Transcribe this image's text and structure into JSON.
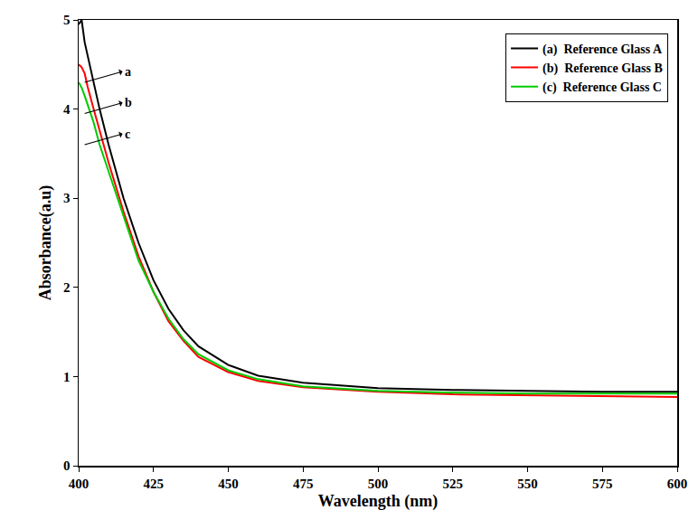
{
  "chart_data": {
    "type": "line",
    "x_label": "Wavelength (nm)",
    "y_label": "Absorbance(a.u)",
    "x": [
      400,
      401,
      402,
      403,
      405,
      407,
      410,
      415,
      420,
      425,
      430,
      435,
      440,
      450,
      460,
      475,
      500,
      525,
      550,
      575,
      600
    ],
    "series": [
      {
        "name": "(a)  Reference Glass A",
        "color": "#000000",
        "values": [
          4.95,
          5.0,
          4.75,
          4.6,
          4.3,
          4.0,
          3.6,
          3.0,
          2.5,
          2.08,
          1.76,
          1.52,
          1.34,
          1.13,
          1.01,
          0.93,
          0.87,
          0.85,
          0.84,
          0.83,
          0.83
        ]
      },
      {
        "name": "(b)  Reference Glass B",
        "color": "#ff0000",
        "values": [
          4.5,
          4.47,
          4.4,
          4.25,
          4.0,
          3.75,
          3.4,
          2.85,
          2.35,
          1.95,
          1.62,
          1.4,
          1.22,
          1.05,
          0.95,
          0.88,
          0.83,
          0.8,
          0.79,
          0.78,
          0.77
        ]
      },
      {
        "name": "(c)  Reference Glass C",
        "color": "#00cc00",
        "values": [
          4.3,
          4.24,
          4.15,
          4.05,
          3.85,
          3.6,
          3.3,
          2.8,
          2.3,
          1.95,
          1.65,
          1.42,
          1.25,
          1.07,
          0.97,
          0.89,
          0.84,
          0.82,
          0.81,
          0.81,
          0.81
        ]
      }
    ],
    "annotations": [
      {
        "text": "a",
        "x": 402,
        "y": 4.3
      },
      {
        "text": "b",
        "x": 402,
        "y": 3.95
      },
      {
        "text": "c",
        "x": 402,
        "y": 3.6
      }
    ],
    "xlim": [
      400,
      600
    ],
    "ylim": [
      0,
      5
    ],
    "xticks": [
      400,
      425,
      450,
      475,
      500,
      525,
      550,
      575,
      600
    ],
    "yticks": [
      0,
      1,
      2,
      3,
      4,
      5
    ],
    "grid": false,
    "legend": "upper right"
  }
}
